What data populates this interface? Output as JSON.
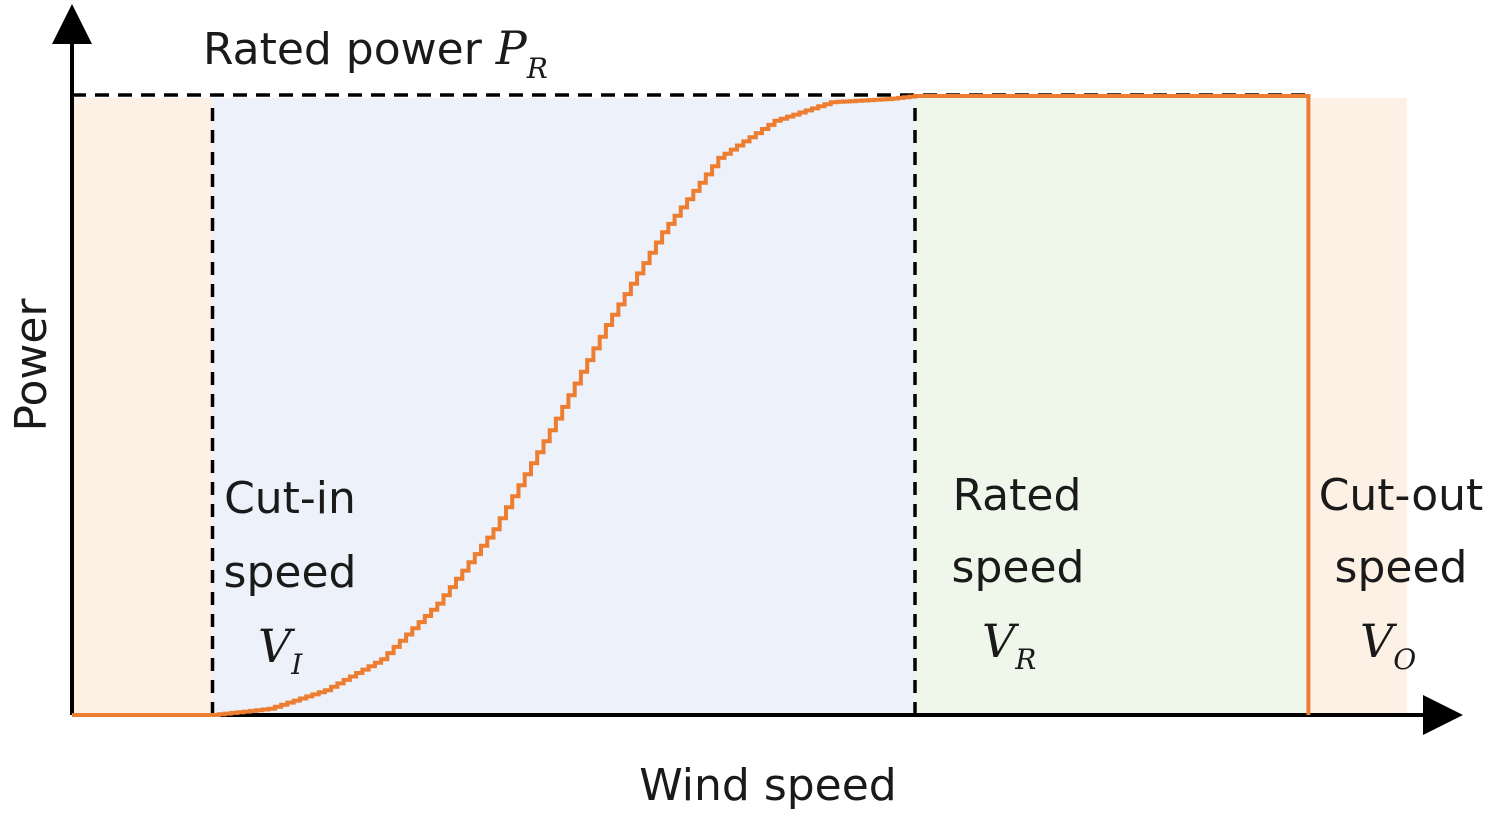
{
  "chart_data": {
    "type": "line",
    "title": "",
    "xlabel": "Wind speed",
    "ylabel": "Power",
    "x_units": "normalized wind speed (cut-in = 0.1, rated = 0.6, cut-out = 0.88)",
    "y_units": "fraction of rated power",
    "xlim": [
      0,
      1
    ],
    "ylim": [
      0,
      1
    ],
    "grid": false,
    "line_color": "#ed7d31",
    "regions": [
      {
        "name": "below-cut-in",
        "x": [
          0,
          0.1
        ],
        "color": "#fdf1e6"
      },
      {
        "name": "partial-load",
        "x": [
          0.1,
          0.6
        ],
        "color": "#edf1f9"
      },
      {
        "name": "rated-load",
        "x": [
          0.6,
          0.88
        ],
        "color": "#eff7ea"
      },
      {
        "name": "above-cut-out",
        "x": [
          0.88,
          0.95
        ],
        "color": "#fdf1e6"
      }
    ],
    "rated_power_label": {
      "text": "Rated power ",
      "symbol": "P",
      "sub": "R"
    },
    "markers": [
      {
        "name": "cut-in",
        "line1": "Cut-in",
        "line2": "speed",
        "symbol": "V",
        "sub": "I",
        "x": 0.1,
        "dashed": true
      },
      {
        "name": "rated",
        "line1": "Rated",
        "line2": "speed",
        "symbol": "V",
        "sub": "R",
        "x": 0.6,
        "dashed": true
      },
      {
        "name": "cut-out",
        "line1": "Cut-out",
        "line2": "speed",
        "symbol": "V",
        "sub": "O",
        "x": 0.88,
        "dashed": false
      }
    ],
    "series": [
      {
        "x": [
          0,
          0.1,
          0.14,
          0.18,
          0.22,
          0.26,
          0.3,
          0.34,
          0.38,
          0.42,
          0.46,
          0.5,
          0.54,
          0.58,
          0.6,
          0.62,
          0.88,
          0.88
        ],
        "values": [
          0,
          0,
          0.01,
          0.04,
          0.09,
          0.18,
          0.3,
          0.46,
          0.63,
          0.78,
          0.9,
          0.96,
          0.99,
          0.995,
          1.0,
          1.0,
          1.0,
          0
        ]
      }
    ]
  }
}
